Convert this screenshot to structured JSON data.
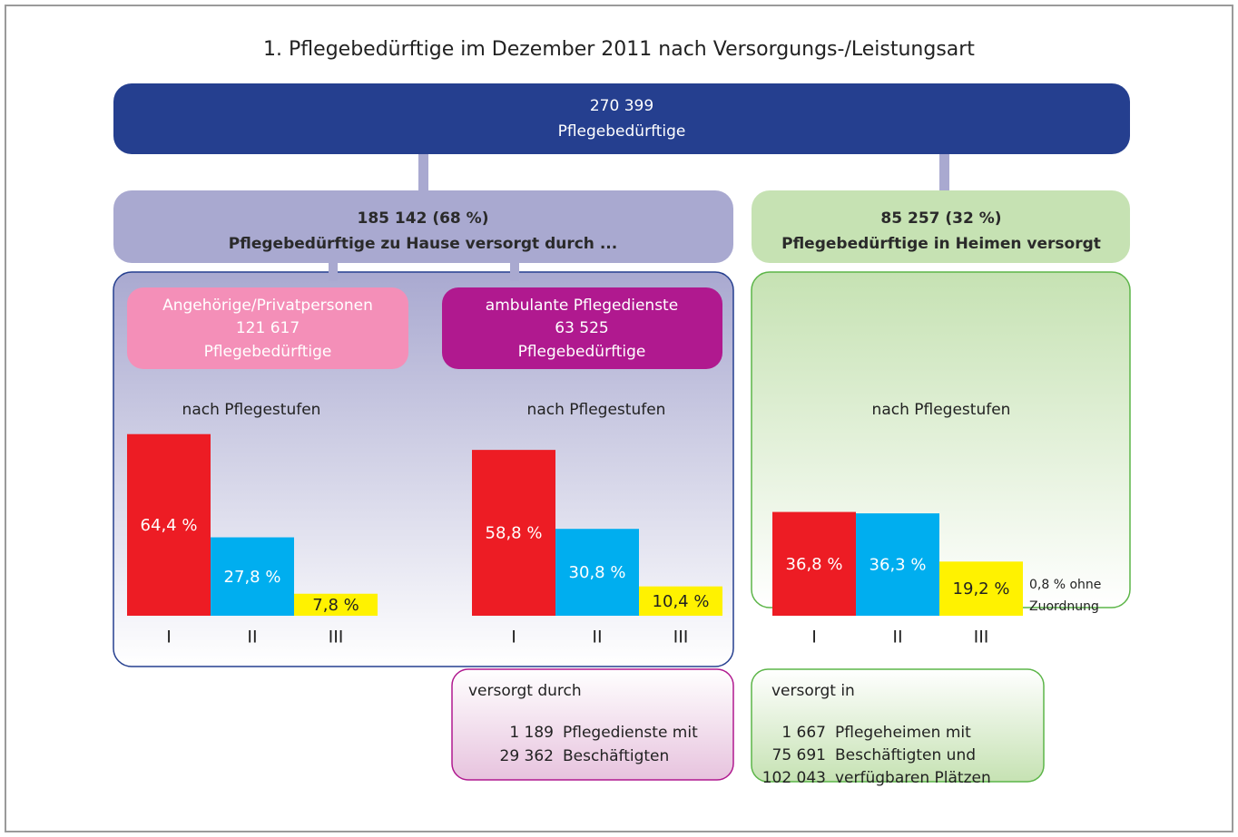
{
  "title": "1. Pflegebedürftige im Dezember 2011 nach Versorgungs-/Leistungsart",
  "total": {
    "lines": [
      "270 399",
      "Pflegebedürftige"
    ]
  },
  "home": {
    "lines": [
      "185 142 (68 %)",
      "Pflegebedürftige zu Hause versorgt durch ..."
    ]
  },
  "institutions": {
    "lines": [
      "85 257 (32 %)",
      "Pflegebedürftige in Heimen versorgt"
    ]
  },
  "relatives": {
    "lines": [
      "Angehörige/Privatpersonen",
      "121 617",
      "Pflegebedürftige"
    ]
  },
  "ambulant": {
    "lines": [
      "ambulante Pflegedienste",
      "63 525",
      "Pflegebedürftige"
    ]
  },
  "ambulant_detail": {
    "heading": "versorgt durch",
    "rows": [
      [
        "1 189",
        "Pflegedienste mit"
      ],
      [
        "29 362",
        "Beschäftigten"
      ]
    ]
  },
  "institutions_detail": {
    "heading": "versorgt in",
    "rows": [
      [
        "1 667",
        "Pflegeheimen mit"
      ],
      [
        "75 691",
        "Beschäftigten und"
      ],
      [
        "102 043",
        "verfügbaren Plätzen"
      ]
    ]
  },
  "chart_data": [
    {
      "type": "bar",
      "title": "nach Pflegestufen",
      "categories": [
        "I",
        "II",
        "III"
      ],
      "values": [
        64.4,
        27.8,
        7.8
      ],
      "value_labels": [
        "64,4 %",
        "27,8 %",
        "7,8 %"
      ],
      "colors": [
        "#ed1c24",
        "#00aeef",
        "#fff200"
      ]
    },
    {
      "type": "bar",
      "title": "nach Pflegestufen",
      "categories": [
        "I",
        "II",
        "III"
      ],
      "values": [
        58.8,
        30.8,
        10.4
      ],
      "value_labels": [
        "58,8 %",
        "30,8 %",
        "10,4 %"
      ],
      "colors": [
        "#ed1c24",
        "#00aeef",
        "#fff200"
      ]
    },
    {
      "type": "bar",
      "title": "nach Pflegestufen",
      "categories": [
        "I",
        "II",
        "III"
      ],
      "values": [
        36.8,
        36.3,
        19.2
      ],
      "value_labels": [
        "36,8 %",
        "36,3 %",
        "19,2 %"
      ],
      "colors": [
        "#ed1c24",
        "#00aeef",
        "#fff200"
      ],
      "annotation": [
        "0,8 % ohne",
        "Zuordnung"
      ]
    }
  ]
}
